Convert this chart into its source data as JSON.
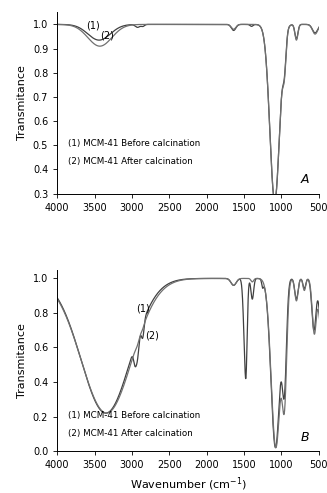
{
  "title_A": "A",
  "title_B": "B",
  "xlabel": "Wavenumber (cm$^{-1}$)",
  "ylabel": "Transmitance",
  "xlim": [
    4000,
    500
  ],
  "ylim_A": [
    0.3,
    1.05
  ],
  "ylim_B": [
    0.0,
    1.05
  ],
  "yticks_A": [
    0.3,
    0.4,
    0.5,
    0.6,
    0.7,
    0.8,
    0.9,
    1.0
  ],
  "yticks_B": [
    0.0,
    0.2,
    0.4,
    0.6,
    0.8,
    1.0
  ],
  "xticks": [
    4000,
    3500,
    3000,
    2500,
    2000,
    1500,
    1000,
    500
  ],
  "legend_1": "(1) MCM-41 Before calcination",
  "legend_2": "(2) MCM-41 After calcination",
  "label_1_A": "(1)",
  "label_2_A": "(2)",
  "label_1_B": "(1)",
  "label_2_B": "(2)",
  "color_1": "#404040",
  "color_2": "#707070",
  "linewidth": 0.9,
  "background_color": "#ffffff"
}
